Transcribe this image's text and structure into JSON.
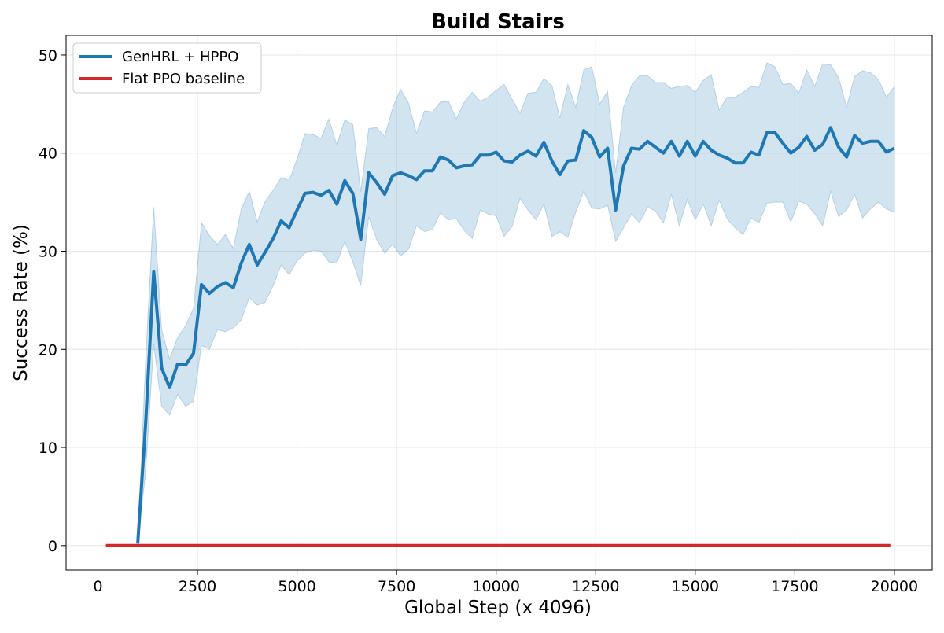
{
  "chart_data": {
    "type": "line",
    "title": "Build Stairs",
    "xlabel": "Global Step (x 4096)",
    "ylabel": "Success Rate (%)",
    "xlim": [
      -800,
      20950
    ],
    "ylim": [
      -2.5,
      52.0
    ],
    "xticks": [
      0,
      2500,
      5000,
      7500,
      10000,
      12500,
      15000,
      17500,
      20000
    ],
    "yticks": [
      0,
      10,
      20,
      30,
      40,
      50
    ],
    "grid": true,
    "legend_position": "top-left",
    "series": [
      {
        "name": "GenHRL + HPPO",
        "color": "#1f77b4",
        "band_color": "#1f77b4",
        "x": [
          1000,
          1200,
          1400,
          1600,
          1800,
          2000,
          2200,
          2400,
          2600,
          2800,
          3000,
          3200,
          3400,
          3600,
          3800,
          4000,
          4200,
          4400,
          4600,
          4800,
          5000,
          5200,
          5400,
          5600,
          5800,
          6000,
          6200,
          6400,
          6600,
          6800,
          7000,
          7200,
          7400,
          7600,
          7800,
          8000,
          8200,
          8400,
          8600,
          8800,
          9000,
          9200,
          9400,
          9600,
          9800,
          10000,
          10200,
          10400,
          10600,
          10800,
          11000,
          11200,
          11400,
          11600,
          11800,
          12000,
          12200,
          12400,
          12600,
          12800,
          13000,
          13200,
          13400,
          13600,
          13800,
          14000,
          14200,
          14400,
          14600,
          14800,
          15000,
          15200,
          15400,
          15600,
          15800,
          16000,
          16200,
          16400,
          16600,
          16800,
          17000,
          17200,
          17400,
          17600,
          17800,
          18000,
          18200,
          18400,
          18600,
          18800,
          19000,
          19200,
          19400,
          19600,
          19800,
          20000
        ],
        "y": [
          0.2,
          12.5,
          27.9,
          18.1,
          16.1,
          18.5,
          18.4,
          19.6,
          26.6,
          25.7,
          26.4,
          26.8,
          26.3,
          28.8,
          30.7,
          28.6,
          29.9,
          31.3,
          33.1,
          32.4,
          34.2,
          35.9,
          36.0,
          35.7,
          36.2,
          34.8,
          37.2,
          35.9,
          31.2,
          38.0,
          37.0,
          35.8,
          37.7,
          38.0,
          37.7,
          37.3,
          38.2,
          38.2,
          39.6,
          39.3,
          38.5,
          38.7,
          38.8,
          39.8,
          39.8,
          40.1,
          39.2,
          39.1,
          39.8,
          40.2,
          39.7,
          41.1,
          39.2,
          37.8,
          39.2,
          39.3,
          42.3,
          41.6,
          39.6,
          40.5,
          34.2,
          38.7,
          40.5,
          40.4,
          41.2,
          40.6,
          40.0,
          41.2,
          39.7,
          41.2,
          39.7,
          41.2,
          40.3,
          39.8,
          39.5,
          39.0,
          39.0,
          40.1,
          39.8,
          42.1,
          42.1,
          41.0,
          40.0,
          40.6,
          41.7,
          40.3,
          40.9,
          42.6,
          40.6,
          39.6,
          41.8,
          41.0,
          41.2,
          41.2,
          40.1,
          40.5
        ],
        "lower": [
          0.2,
          7.5,
          20.5,
          14.2,
          13.3,
          15.4,
          14.2,
          14.7,
          20.4,
          20.0,
          22.0,
          21.8,
          22.2,
          23.0,
          25.3,
          24.5,
          24.8,
          26.5,
          28.6,
          27.6,
          29.0,
          29.8,
          30.1,
          30.0,
          28.9,
          28.8,
          31.0,
          28.9,
          26.5,
          33.5,
          31.2,
          29.8,
          30.7,
          29.5,
          30.2,
          32.6,
          32.0,
          32.2,
          33.9,
          33.2,
          33.3,
          32.1,
          31.3,
          34.2,
          33.8,
          33.6,
          31.5,
          32.5,
          35.4,
          34.2,
          33.2,
          34.8,
          31.5,
          32.0,
          31.4,
          34.0,
          36.1,
          34.4,
          34.3,
          34.7,
          31.0,
          32.4,
          33.8,
          32.9,
          34.5,
          34.1,
          32.9,
          35.8,
          32.6,
          35.3,
          33.2,
          34.8,
          32.6,
          35.2,
          33.3,
          32.4,
          31.7,
          33.4,
          32.9,
          34.9,
          35.0,
          35.0,
          33.0,
          35.1,
          34.8,
          33.8,
          32.6,
          36.1,
          33.5,
          34.2,
          35.8,
          33.4,
          34.3,
          35.0,
          34.3,
          34.0
        ],
        "upper": [
          0.2,
          19.0,
          34.5,
          22.0,
          19.0,
          21.2,
          22.4,
          24.2,
          32.9,
          31.6,
          30.7,
          31.7,
          30.3,
          34.3,
          36.1,
          33.0,
          35.1,
          36.2,
          37.5,
          37.2,
          39.4,
          42.0,
          41.9,
          41.5,
          43.5,
          40.8,
          43.4,
          42.9,
          36.1,
          42.5,
          42.6,
          41.7,
          44.6,
          46.5,
          45.1,
          42.0,
          44.3,
          44.2,
          45.2,
          45.3,
          43.5,
          45.2,
          46.2,
          45.3,
          45.7,
          46.4,
          47.0,
          45.5,
          44.1,
          46.1,
          46.2,
          47.6,
          46.9,
          43.6,
          47.0,
          44.7,
          48.5,
          48.8,
          45.0,
          46.3,
          38.0,
          44.7,
          46.9,
          47.9,
          47.9,
          47.2,
          47.2,
          46.6,
          46.8,
          46.9,
          46.2,
          47.4,
          48.0,
          44.4,
          45.7,
          45.7,
          46.2,
          46.8,
          46.7,
          49.2,
          48.8,
          47.0,
          47.1,
          46.1,
          48.5,
          46.8,
          49.1,
          49.0,
          47.7,
          44.7,
          47.8,
          48.4,
          48.2,
          47.5,
          45.7,
          46.8
        ]
      },
      {
        "name": "Flat PPO baseline",
        "color": "#d62728",
        "x": [
          200,
          19900
        ],
        "y": [
          0.0,
          0.0
        ]
      }
    ]
  }
}
